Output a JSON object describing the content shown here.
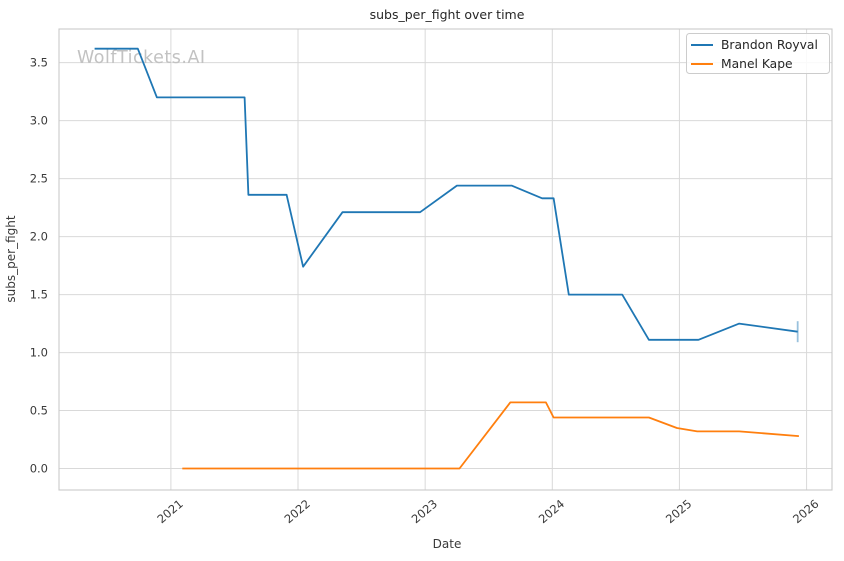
{
  "figure": {
    "watermark": "WolfTickets.AI"
  },
  "chart_data": {
    "type": "line",
    "title": "subs_per_fight over time",
    "xlabel": "Date",
    "ylabel": "subs_per_fight",
    "xlim": [
      2020.12,
      2026.2
    ],
    "ylim": [
      -0.185,
      3.79
    ],
    "x_ticks": [
      2021,
      2022,
      2023,
      2024,
      2025,
      2026
    ],
    "y_ticks": [
      0.0,
      0.5,
      1.0,
      1.5,
      2.0,
      2.5,
      3.0,
      3.5
    ],
    "grid": true,
    "legend_position": "upper right",
    "series": [
      {
        "name": "Brandon Royval",
        "color": "#1f77b4",
        "x": [
          2020.4,
          2020.74,
          2020.89,
          2021.58,
          2021.61,
          2021.91,
          2022.04,
          2022.35,
          2022.96,
          2023.25,
          2023.68,
          2023.92,
          2024.01,
          2024.13,
          2024.55,
          2024.76,
          2025.15,
          2025.47,
          2025.93
        ],
        "y": [
          3.62,
          3.62,
          3.2,
          3.2,
          2.36,
          2.36,
          1.74,
          2.21,
          2.21,
          2.44,
          2.44,
          2.33,
          2.33,
          1.5,
          1.5,
          1.11,
          1.11,
          1.25,
          1.18
        ],
        "end_tick": true
      },
      {
        "name": "Manel Kape",
        "color": "#ff7f0e",
        "x": [
          2021.09,
          2023.27,
          2023.67,
          2023.95,
          2024.01,
          2024.76,
          2024.98,
          2025.14,
          2025.47,
          2025.94
        ],
        "y": [
          0.0,
          0.0,
          0.57,
          0.57,
          0.44,
          0.44,
          0.35,
          0.32,
          0.32,
          0.28
        ],
        "end_tick": false
      }
    ]
  },
  "colors": {
    "grid": "#d9d9d9",
    "spine": "#c9c9c9",
    "title_text": "#262626",
    "tick_text": "#3a3a3a",
    "watermark": "#c2c2c2",
    "legend_border": "#cccccc"
  }
}
